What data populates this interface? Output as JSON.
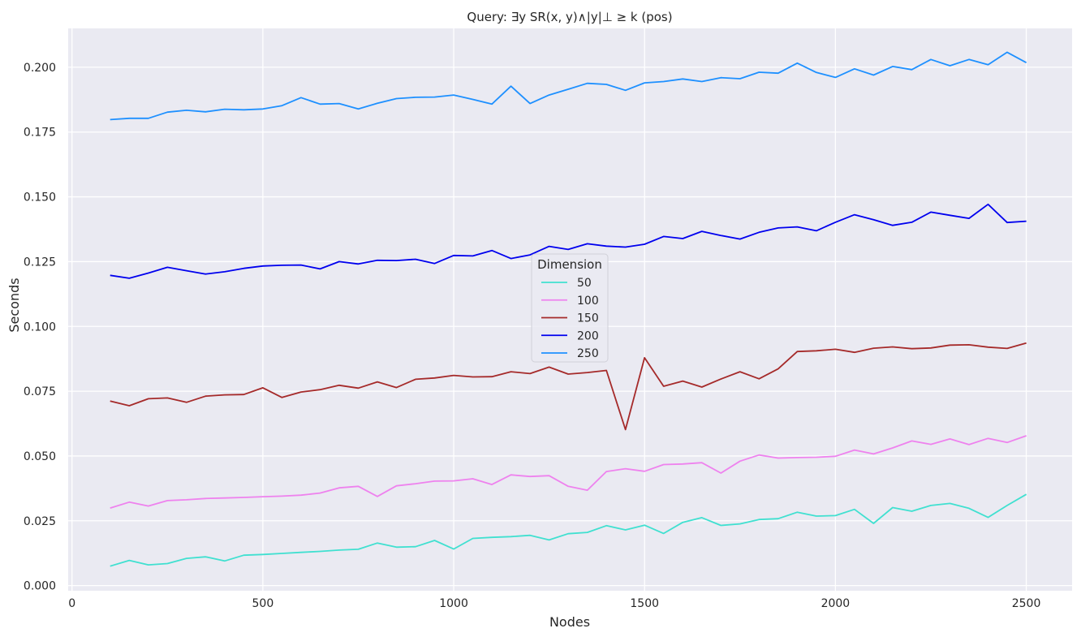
{
  "chart_data": {
    "type": "line",
    "title": "Query: ∃y  SR(x, y)∧|y|⊥ ≥ k (pos)",
    "xlabel": "Nodes",
    "ylabel": "Seconds",
    "xlim": [
      -10,
      2620
    ],
    "ylim": [
      -0.002,
      0.215
    ],
    "x_ticks": [
      0,
      500,
      1000,
      1500,
      2000,
      2500
    ],
    "y_ticks": [
      0.0,
      0.025,
      0.05,
      0.075,
      0.1,
      0.125,
      0.15,
      0.175,
      0.2
    ],
    "y_tick_labels": [
      "0.000",
      "0.025",
      "0.050",
      "0.075",
      "0.100",
      "0.125",
      "0.150",
      "0.175",
      "0.200"
    ],
    "grid": true,
    "background": "#eaeaf2",
    "legend": {
      "title": "Dimension",
      "placement": "center"
    },
    "x": [
      100,
      150,
      200,
      250,
      300,
      350,
      400,
      450,
      500,
      550,
      600,
      650,
      700,
      750,
      800,
      850,
      900,
      950,
      1000,
      1050,
      1100,
      1150,
      1200,
      1250,
      1300,
      1350,
      1400,
      1450,
      1500,
      1550,
      1600,
      1650,
      1700,
      1750,
      1800,
      1850,
      1900,
      1950,
      2000,
      2050,
      2100,
      2150,
      2200,
      2250,
      2300,
      2350,
      2400,
      2450,
      2500
    ],
    "series": [
      {
        "name": "50",
        "color": "#40e0d0",
        "values": [
          0.0075,
          0.0097,
          0.008,
          0.0085,
          0.0105,
          0.0111,
          0.0095,
          0.0117,
          0.012,
          0.0124,
          0.0128,
          0.0132,
          0.0137,
          0.014,
          0.0164,
          0.0148,
          0.015,
          0.0174,
          0.0141,
          0.0182,
          0.0186,
          0.0189,
          0.0194,
          0.0176,
          0.02,
          0.0205,
          0.0231,
          0.0215,
          0.0233,
          0.0201,
          0.0244,
          0.0262,
          0.0232,
          0.0238,
          0.0255,
          0.0258,
          0.0283,
          0.0268,
          0.027,
          0.0294,
          0.024,
          0.0301,
          0.0287,
          0.0309,
          0.0317,
          0.0298,
          0.0263,
          0.0309,
          0.0352
        ]
      },
      {
        "name": "100",
        "color": "#ee82ee",
        "values": [
          0.0299,
          0.0322,
          0.0307,
          0.0328,
          0.0331,
          0.0336,
          0.0338,
          0.034,
          0.0343,
          0.0345,
          0.0349,
          0.0357,
          0.0377,
          0.0383,
          0.0344,
          0.0385,
          0.0393,
          0.0403,
          0.0404,
          0.0412,
          0.039,
          0.0427,
          0.0421,
          0.0424,
          0.0383,
          0.0368,
          0.044,
          0.0451,
          0.0441,
          0.0467,
          0.0469,
          0.0474,
          0.0434,
          0.048,
          0.0504,
          0.0492,
          0.0494,
          0.0495,
          0.0499,
          0.0523,
          0.0508,
          0.0531,
          0.0558,
          0.0545,
          0.0566,
          0.0544,
          0.0568,
          0.0552,
          0.0578
        ]
      },
      {
        "name": "150",
        "color": "#a52a2a",
        "values": [
          0.0712,
          0.0694,
          0.0721,
          0.0724,
          0.0707,
          0.0731,
          0.0736,
          0.0737,
          0.0763,
          0.0726,
          0.0747,
          0.0756,
          0.0773,
          0.0762,
          0.0786,
          0.0764,
          0.0796,
          0.0801,
          0.0811,
          0.0805,
          0.0806,
          0.0825,
          0.0818,
          0.0843,
          0.0816,
          0.0822,
          0.083,
          0.0602,
          0.0879,
          0.0769,
          0.0789,
          0.0766,
          0.0797,
          0.0825,
          0.0798,
          0.0836,
          0.0903,
          0.0906,
          0.0912,
          0.09,
          0.0916,
          0.0921,
          0.0914,
          0.0917,
          0.0928,
          0.0929,
          0.092,
          0.0915,
          0.0936
        ]
      },
      {
        "name": "200",
        "color": "#0000ee",
        "values": [
          0.1197,
          0.1186,
          0.1206,
          0.1228,
          0.1215,
          0.1202,
          0.1211,
          0.1224,
          0.1233,
          0.1236,
          0.1237,
          0.1222,
          0.125,
          0.1241,
          0.1255,
          0.1254,
          0.1259,
          0.1243,
          0.1274,
          0.1272,
          0.1293,
          0.1262,
          0.1276,
          0.1309,
          0.1297,
          0.1319,
          0.131,
          0.1306,
          0.1317,
          0.1347,
          0.1339,
          0.1367,
          0.1351,
          0.1337,
          0.1363,
          0.138,
          0.1384,
          0.1369,
          0.1402,
          0.1431,
          0.1412,
          0.139,
          0.1402,
          0.1441,
          0.1429,
          0.1417,
          0.1471,
          0.1401,
          0.1406
        ]
      },
      {
        "name": "250",
        "color": "#1e90ff",
        "values": [
          0.1798,
          0.1803,
          0.1803,
          0.1827,
          0.1834,
          0.1828,
          0.1838,
          0.1836,
          0.1839,
          0.1852,
          0.1883,
          0.1858,
          0.186,
          0.1839,
          0.1861,
          0.1879,
          0.1884,
          0.1885,
          0.1893,
          0.1876,
          0.1858,
          0.1927,
          0.186,
          0.1893,
          0.1915,
          0.1938,
          0.1934,
          0.1911,
          0.194,
          0.1945,
          0.1955,
          0.1945,
          0.196,
          0.1956,
          0.1981,
          0.1977,
          0.2016,
          0.198,
          0.1961,
          0.1994,
          0.197,
          0.2003,
          0.1991,
          0.203,
          0.2006,
          0.203,
          0.201,
          0.2058,
          0.2018
        ]
      }
    ]
  }
}
